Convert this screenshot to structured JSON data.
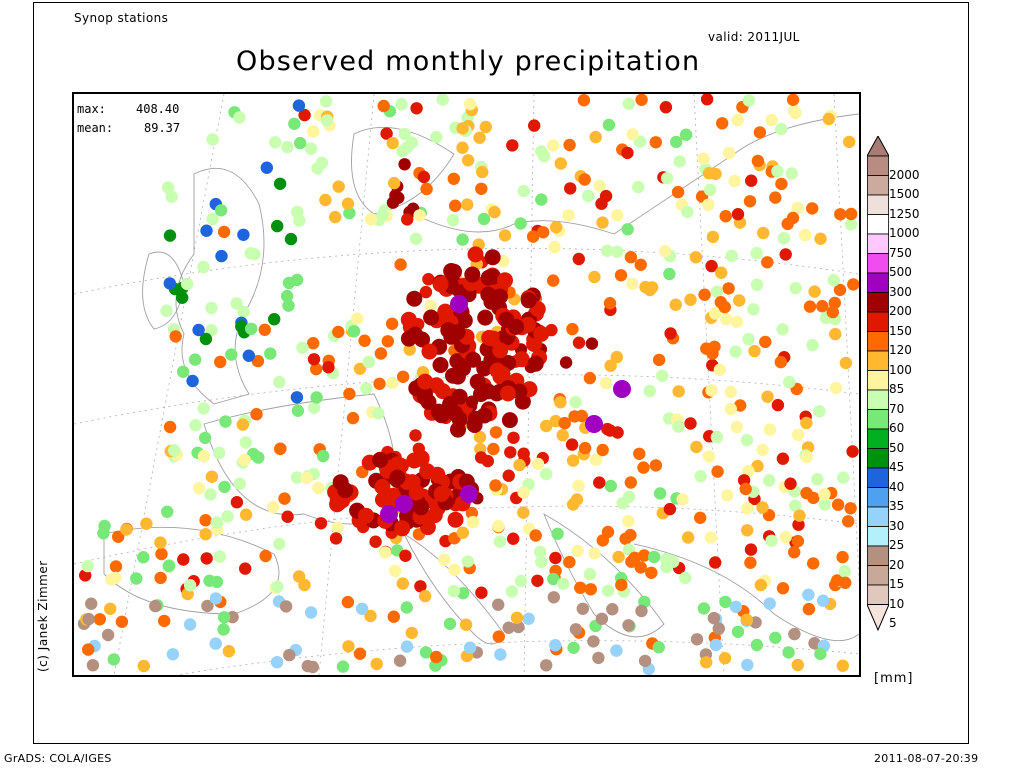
{
  "header": {
    "stations_label": "Synop stations",
    "valid_label": "valid: 2011JUL",
    "title": "Observed monthly precipitation"
  },
  "stats": {
    "max_label": "max:",
    "max_value": "408.40",
    "mean_label": "mean:",
    "mean_value": "89.37"
  },
  "credit": "(c) Janek Zimmer",
  "legend": {
    "units": "[mm]",
    "labels": [
      "2000",
      "1500",
      "1250",
      "1000",
      "750",
      "500",
      "300",
      "200",
      "150",
      "120",
      "100",
      "85",
      "70",
      "60",
      "50",
      "45",
      "40",
      "35",
      "30",
      "25",
      "20",
      "15",
      "10",
      "5"
    ],
    "colors": [
      "#b88c80",
      "#ccaa9e",
      "#f0e0dc",
      "#ffffff",
      "#ffc8ff",
      "#f04cf0",
      "#a000c0",
      "#a00000",
      "#e01800",
      "#ff6a00",
      "#ffb830",
      "#fff59e",
      "#c8ffb0",
      "#78e878",
      "#00b020",
      "#009010",
      "#1e64dc",
      "#50a0f0",
      "#96d2fa",
      "#b4f0fa",
      "#b49080",
      "#c8a898",
      "#e0c8bc",
      "#f4e4dc"
    ],
    "top_arrow_color": "#a87c74"
  },
  "footer": {
    "left": "GrADS: COLA/IGES",
    "right": "2011-08-07-20:39"
  },
  "map": {
    "station_colors": {
      "dark_red": "#a00000",
      "red": "#e01800",
      "orange": "#ff6a00",
      "light_orange": "#ffb830",
      "yellow": "#fff59e",
      "light_green": "#c8ffb0",
      "green": "#78e878",
      "dark_green": "#009010",
      "blue": "#1e64dc",
      "light_blue": "#96d2fa",
      "brown": "#b49080",
      "purple": "#a000c0"
    },
    "coastline_color": "#a0a0a0",
    "grid_color": "#b0b0b0"
  }
}
